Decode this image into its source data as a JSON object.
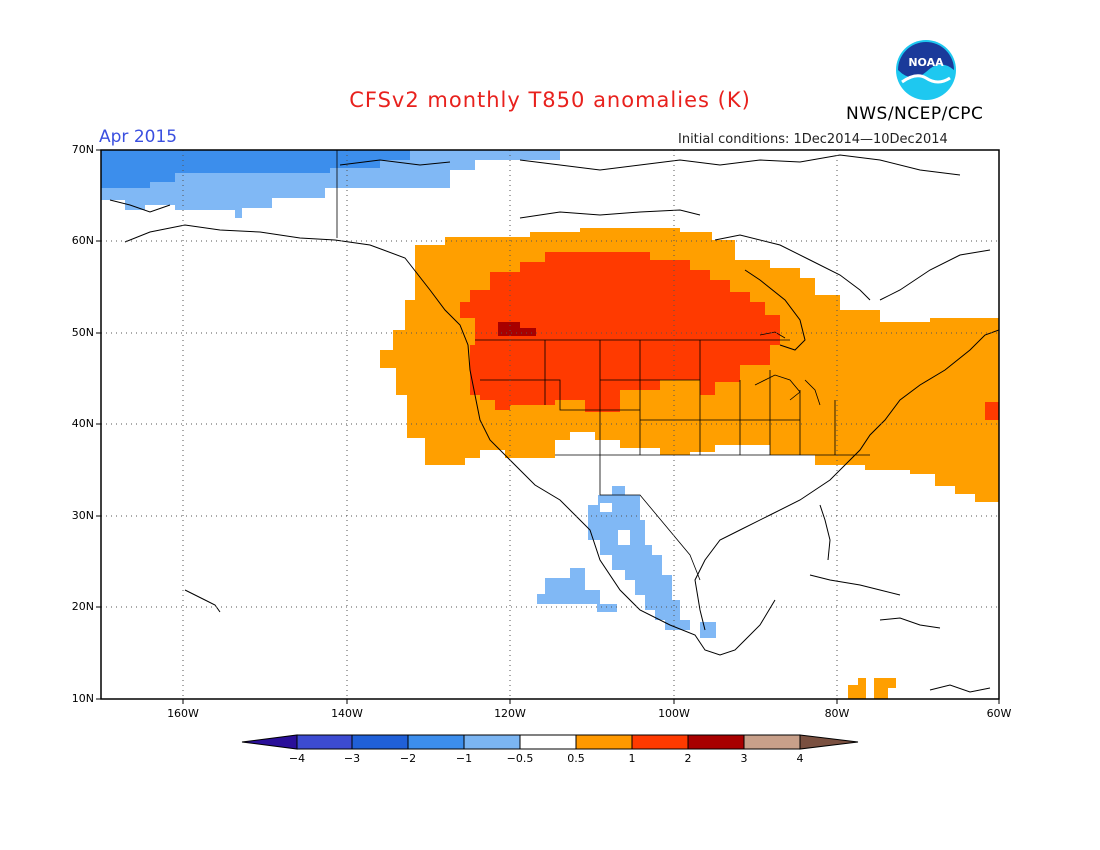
{
  "title": "CFSv2 monthly T850 anomalies (K)",
  "agency": "NWS/NCEP/CPC",
  "month": "Apr 2015",
  "initial_conditions": "Initial conditions: 1Dec2014—10Dec2014",
  "logo_text": "NOAA",
  "lat_labels": [
    "70N",
    "60N",
    "50N",
    "40N",
    "30N",
    "20N",
    "10N"
  ],
  "lon_labels": [
    "160W",
    "140W",
    "120W",
    "100W",
    "80W",
    "60W"
  ],
  "colorbar": {
    "labels": [
      "−4",
      "−3",
      "−2",
      "−1",
      "−0.5",
      "0.5",
      "1",
      "2",
      "3",
      "4"
    ],
    "colors": [
      "#2a0f99",
      "#3c4bd1",
      "#2060d8",
      "#3c8eec",
      "#7bb5f2",
      "#ffffff",
      "#ff9900",
      "#ff3a00",
      "#a80000",
      "#c8a08a",
      "#7a5040"
    ]
  },
  "colors": {
    "title": "#e8211d",
    "month": "#3a4fe0",
    "light_orange": "#ff9f00",
    "red_orange": "#ff3a00",
    "dark_red": "#a80000",
    "light_blue": "#80b8f5",
    "mid_blue": "#3c8eec"
  }
}
